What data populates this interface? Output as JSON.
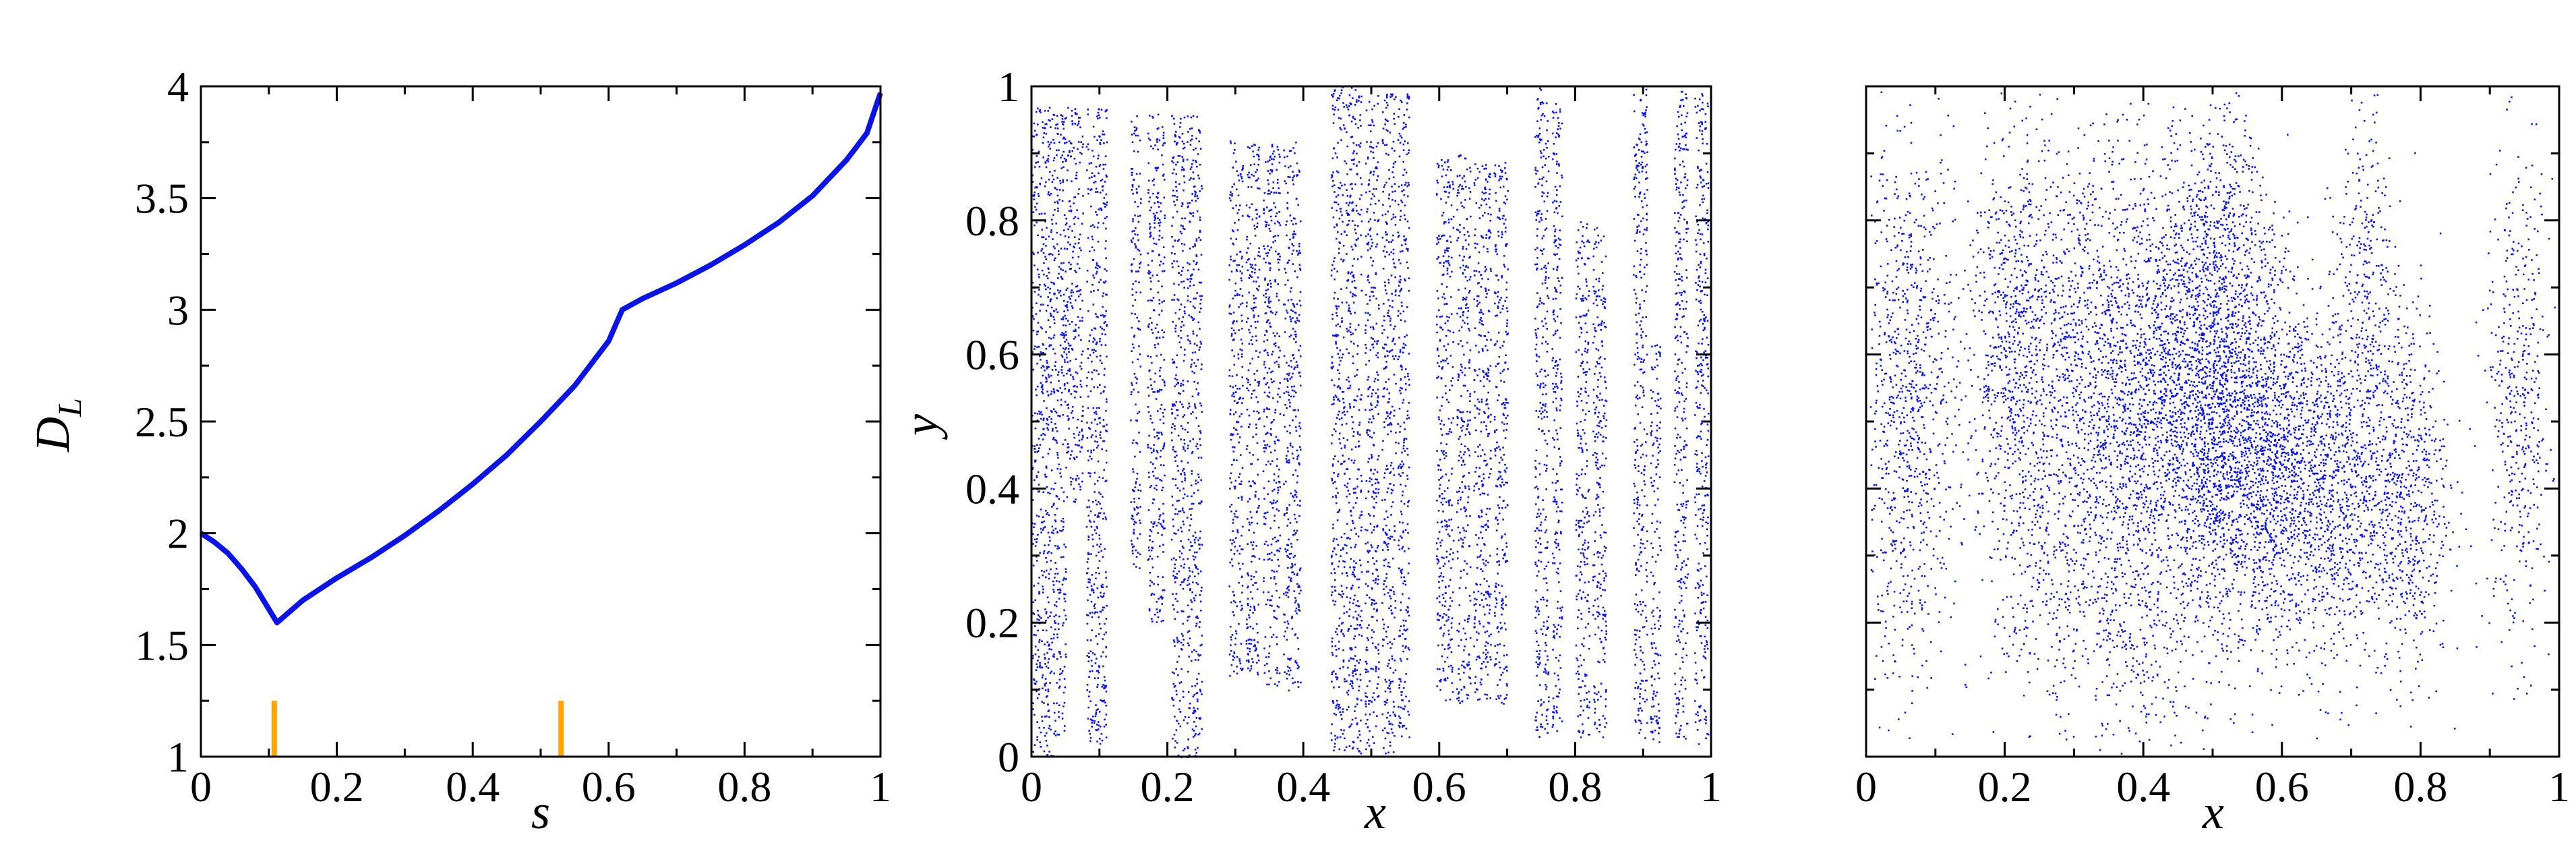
{
  "chart_data": [
    {
      "type": "line",
      "xlabel": "s",
      "ylabel": "D",
      "ylabel_subscript": "L",
      "xlim": [
        0,
        1
      ],
      "ylim": [
        1,
        4
      ],
      "xticks": [
        "0",
        "0.2",
        "0.4",
        "0.6",
        "0.8",
        "1"
      ],
      "xtick_values": [
        0,
        0.2,
        0.4,
        0.6,
        0.8,
        1
      ],
      "yticks": [
        "1",
        "1.5",
        "2",
        "2.5",
        "3",
        "3.5",
        "4"
      ],
      "ytick_values": [
        1,
        1.5,
        2,
        2.5,
        3,
        3.5,
        4
      ],
      "series": [
        {
          "color": "#0a14e6",
          "x": [
            0,
            0.02,
            0.04,
            0.06,
            0.08,
            0.1,
            0.112,
            0.15,
            0.2,
            0.25,
            0.3,
            0.35,
            0.4,
            0.45,
            0.5,
            0.55,
            0.6,
            0.62,
            0.65,
            0.7,
            0.75,
            0.8,
            0.85,
            0.9,
            0.95,
            0.98,
            1.0
          ],
          "y": [
            2.0,
            1.96,
            1.91,
            1.84,
            1.76,
            1.66,
            1.6,
            1.7,
            1.8,
            1.89,
            1.99,
            2.1,
            2.22,
            2.35,
            2.5,
            2.66,
            2.86,
            3.0,
            3.05,
            3.12,
            3.2,
            3.29,
            3.39,
            3.51,
            3.67,
            3.79,
            3.97
          ]
        }
      ],
      "markers": {
        "color": "#ffa500",
        "x": [
          0.108,
          0.53
        ],
        "y_range": [
          1.0,
          1.25
        ]
      }
    },
    {
      "type": "scatter",
      "xlabel": "x",
      "ylabel": "y",
      "xlim": [
        0,
        1
      ],
      "ylim": [
        0,
        1
      ],
      "xticks": [
        "0",
        "0.2",
        "0.4",
        "0.6",
        "0.8",
        "1"
      ],
      "xtick_values": [
        0,
        0.2,
        0.4,
        0.6,
        0.8,
        1
      ],
      "yticks": [
        "0",
        "0.2",
        "0.4",
        "0.6",
        "0.8",
        "1"
      ],
      "ytick_values": [
        0,
        0.2,
        0.4,
        0.6,
        0.8,
        1
      ],
      "point_color": "#0a14e6",
      "strips": [
        {
          "x0": 0.0,
          "x1": 0.035,
          "y0": 0.0,
          "y1": 0.97
        },
        {
          "x0": 0.035,
          "x1": 0.05,
          "y0": 0.03,
          "y1": 0.96
        },
        {
          "x0": 0.05,
          "x1": 0.075,
          "y0": 0.38,
          "y1": 0.97
        },
        {
          "x0": 0.08,
          "x1": 0.11,
          "y0": 0.02,
          "y1": 0.97
        },
        {
          "x0": 0.145,
          "x1": 0.16,
          "y0": 0.28,
          "y1": 0.96
        },
        {
          "x0": 0.17,
          "x1": 0.195,
          "y0": 0.2,
          "y1": 0.96
        },
        {
          "x0": 0.205,
          "x1": 0.225,
          "y0": 0.0,
          "y1": 0.96
        },
        {
          "x0": 0.228,
          "x1": 0.25,
          "y0": 0.0,
          "y1": 0.96
        },
        {
          "x0": 0.29,
          "x1": 0.31,
          "y0": 0.12,
          "y1": 0.92
        },
        {
          "x0": 0.315,
          "x1": 0.335,
          "y0": 0.12,
          "y1": 0.92
        },
        {
          "x0": 0.34,
          "x1": 0.365,
          "y0": 0.1,
          "y1": 0.92
        },
        {
          "x0": 0.37,
          "x1": 0.395,
          "y0": 0.1,
          "y1": 0.92
        },
        {
          "x0": 0.44,
          "x1": 0.46,
          "y0": 0.01,
          "y1": 1.0
        },
        {
          "x0": 0.462,
          "x1": 0.485,
          "y0": 0.0,
          "y1": 1.0
        },
        {
          "x0": 0.49,
          "x1": 0.51,
          "y0": 0.0,
          "y1": 0.99
        },
        {
          "x0": 0.515,
          "x1": 0.535,
          "y0": 0.0,
          "y1": 0.99
        },
        {
          "x0": 0.538,
          "x1": 0.555,
          "y0": 0.02,
          "y1": 0.99
        },
        {
          "x0": 0.595,
          "x1": 0.62,
          "y0": 0.08,
          "y1": 0.9
        },
        {
          "x0": 0.625,
          "x1": 0.645,
          "y0": 0.08,
          "y1": 0.9
        },
        {
          "x0": 0.65,
          "x1": 0.675,
          "y0": 0.08,
          "y1": 0.89
        },
        {
          "x0": 0.68,
          "x1": 0.7,
          "y0": 0.08,
          "y1": 0.89
        },
        {
          "x0": 0.74,
          "x1": 0.76,
          "y0": 0.03,
          "y1": 1.0
        },
        {
          "x0": 0.765,
          "x1": 0.78,
          "y0": 0.03,
          "y1": 0.98
        },
        {
          "x0": 0.8,
          "x1": 0.82,
          "y0": 0.03,
          "y1": 0.8
        },
        {
          "x0": 0.825,
          "x1": 0.845,
          "y0": 0.03,
          "y1": 0.79
        },
        {
          "x0": 0.885,
          "x1": 0.905,
          "y0": 0.02,
          "y1": 1.0
        },
        {
          "x0": 0.91,
          "x1": 0.925,
          "y0": 0.02,
          "y1": 0.62
        },
        {
          "x0": 0.945,
          "x1": 0.965,
          "y0": 0.02,
          "y1": 1.0
        },
        {
          "x0": 0.975,
          "x1": 0.995,
          "y0": 0.02,
          "y1": 1.0
        }
      ]
    },
    {
      "type": "scatter",
      "xlabel": "x",
      "ylabel": "",
      "xlim": [
        0,
        1
      ],
      "ylim": [
        0,
        1
      ],
      "xticks": [
        "0",
        "0.2",
        "0.4",
        "0.6",
        "0.8",
        "1"
      ],
      "xtick_values": [
        0,
        0.2,
        0.4,
        0.6,
        0.8,
        1
      ],
      "ytick_values": [
        0,
        0.2,
        0.4,
        0.6,
        0.8,
        1
      ],
      "point_color": "#0a14e6",
      "clouds": [
        {
          "cx": 0.06,
          "cy": 0.52,
          "sx": 0.035,
          "sy": 0.2,
          "n": 900
        },
        {
          "cx": 0.21,
          "cy": 0.62,
          "sx": 0.035,
          "sy": 0.17,
          "n": 700
        },
        {
          "cx": 0.32,
          "cy": 0.6,
          "sx": 0.06,
          "sy": 0.17,
          "n": 1100
        },
        {
          "cx": 0.48,
          "cy": 0.52,
          "sx": 0.08,
          "sy": 0.15,
          "n": 2600
        },
        {
          "cx": 0.58,
          "cy": 0.42,
          "sx": 0.07,
          "sy": 0.13,
          "n": 1400
        },
        {
          "cx": 0.5,
          "cy": 0.78,
          "sx": 0.04,
          "sy": 0.1,
          "n": 500
        },
        {
          "cx": 0.68,
          "cy": 0.38,
          "sx": 0.05,
          "sy": 0.13,
          "n": 700
        },
        {
          "cx": 0.78,
          "cy": 0.4,
          "sx": 0.03,
          "sy": 0.14,
          "n": 600
        },
        {
          "cx": 0.72,
          "cy": 0.7,
          "sx": 0.02,
          "sy": 0.15,
          "n": 300
        },
        {
          "cx": 0.94,
          "cy": 0.52,
          "sx": 0.025,
          "sy": 0.18,
          "n": 450
        },
        {
          "cx": 0.28,
          "cy": 0.25,
          "sx": 0.05,
          "sy": 0.12,
          "n": 350
        },
        {
          "cx": 0.4,
          "cy": 0.2,
          "sx": 0.04,
          "sy": 0.1,
          "n": 250
        }
      ]
    }
  ]
}
